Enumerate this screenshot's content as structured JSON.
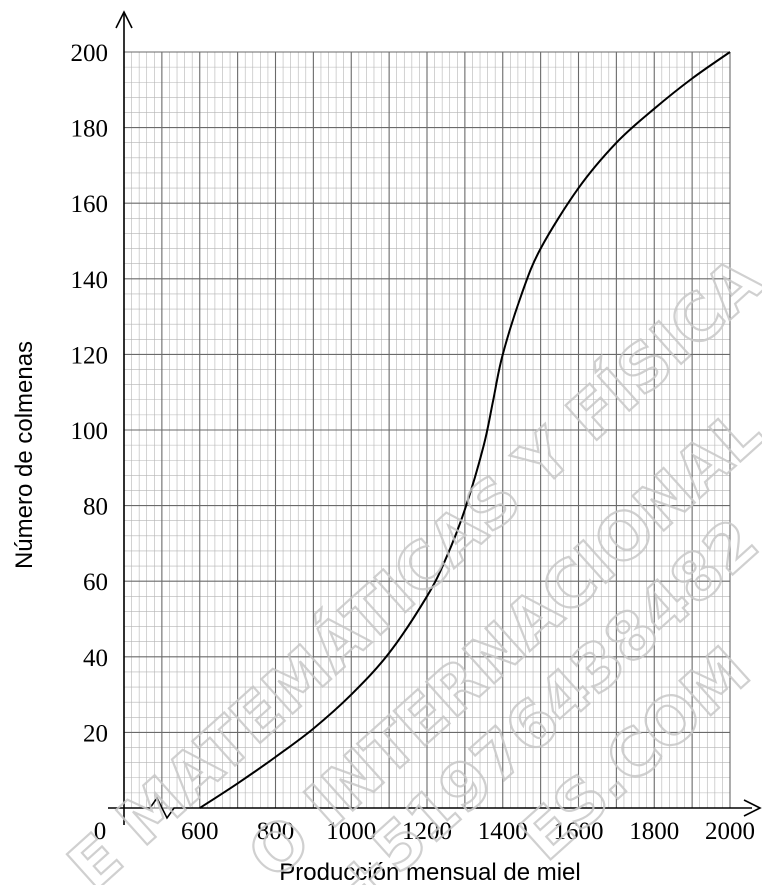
{
  "chart_data": {
    "type": "line",
    "title": "",
    "xlabel": "Producción mensual de miel",
    "ylabel": "Número de colmenas",
    "xlim": [
      600,
      2000
    ],
    "ylim": [
      0,
      200
    ],
    "origin_label": "0",
    "x_ticks": [
      600,
      800,
      1000,
      1200,
      1400,
      1600,
      1800,
      2000
    ],
    "y_ticks": [
      20,
      40,
      60,
      80,
      100,
      120,
      140,
      160,
      180,
      200
    ],
    "grid": true,
    "axis_break": true,
    "series": [
      {
        "x": [
          600,
          700,
          800,
          900,
          1000,
          1100,
          1200,
          1250,
          1300,
          1350,
          1375,
          1400,
          1450,
          1500,
          1600,
          1700,
          1800,
          1900,
          2000
        ],
        "y": [
          0,
          6.5,
          13.5,
          21,
          30,
          41,
          56,
          66,
          79,
          96,
          108,
          120,
          136,
          148,
          164,
          176,
          185,
          193,
          200
        ]
      }
    ]
  },
  "watermark": {
    "lines": [
      "E MATEMÁTICAS Y FÍSICA",
      "O INTERNACIONAL",
      "+51976438482",
      "ES.COM"
    ]
  }
}
